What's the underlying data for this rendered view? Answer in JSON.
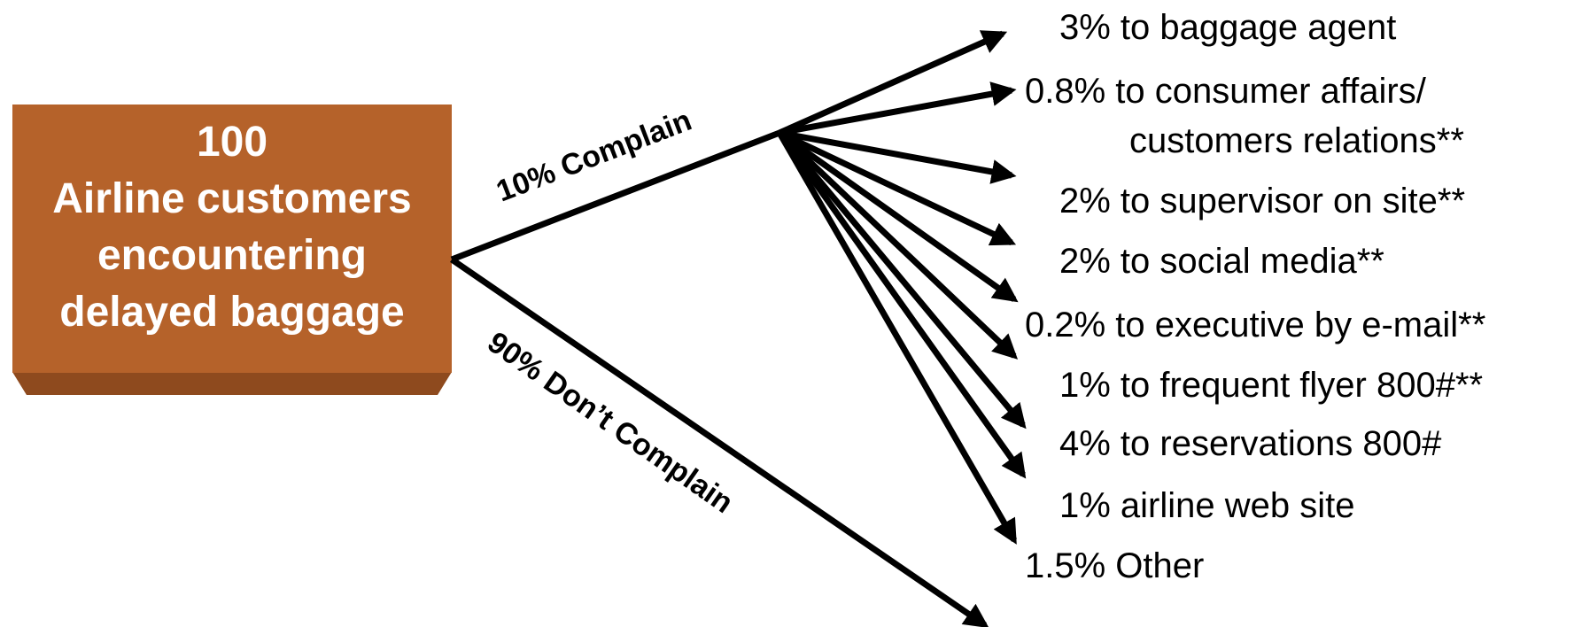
{
  "source_box": {
    "lines": [
      "100",
      "Airline customers",
      "encountering",
      "delayed baggage"
    ],
    "fill_color": "#b5622a",
    "shadow_color": "#8e4a1e"
  },
  "branches": {
    "complain": {
      "label": "10% Complain"
    },
    "dont_complain": {
      "label": "90% Don’t Complain"
    }
  },
  "outcomes": [
    {
      "lines": [
        "3% to baggage agent"
      ]
    },
    {
      "lines": [
        "0.8% to consumer affairs/",
        "customers relations**"
      ]
    },
    {
      "lines": [
        "2% to supervisor on site**"
      ]
    },
    {
      "lines": [
        "2% to social media**"
      ]
    },
    {
      "lines": [
        "0.2% to executive by e-mail**"
      ]
    },
    {
      "lines": [
        "1% to frequent flyer 800#**"
      ]
    },
    {
      "lines": [
        "4% to reservations 800#"
      ]
    },
    {
      "lines": [
        "1% airline web site"
      ]
    },
    {
      "lines": [
        "1.5% Other"
      ]
    }
  ]
}
